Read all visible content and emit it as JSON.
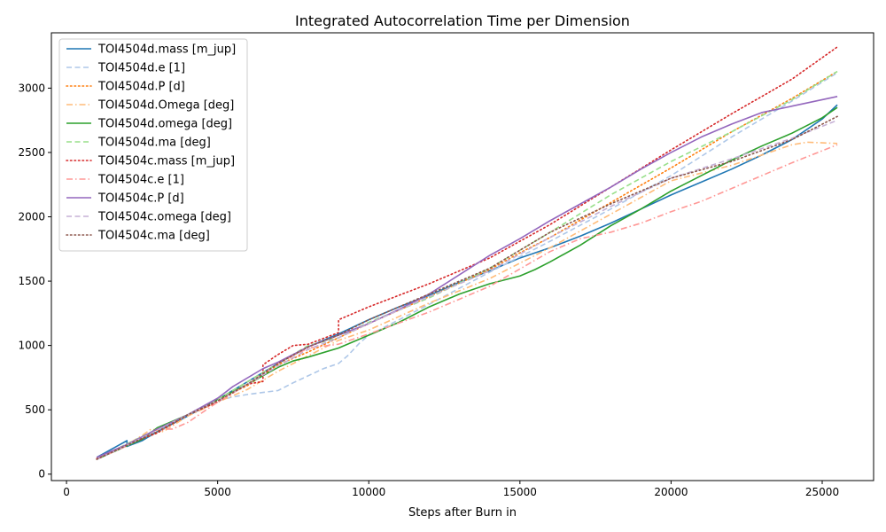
{
  "chart_data": {
    "type": "line",
    "title": "Integrated Autocorrelation Time per Dimension",
    "xlabel": "Steps after Burn in",
    "ylabel": "",
    "xlim": [
      -500,
      26700
    ],
    "ylim": [
      -50,
      3430
    ],
    "xticks": [
      0,
      5000,
      10000,
      15000,
      20000,
      25000
    ],
    "yticks": [
      0,
      500,
      1000,
      1500,
      2000,
      2500,
      3000
    ],
    "legend_position": "top-left",
    "grid": false,
    "series": [
      {
        "name": "TOI4504d.mass [m_jup]",
        "color": "#1f77b4",
        "dash": "solid",
        "alpha": 1,
        "points": [
          [
            1000,
            130
          ],
          [
            2000,
            260
          ],
          [
            2000,
            215
          ],
          [
            2500,
            260
          ],
          [
            3000,
            330
          ],
          [
            4000,
            450
          ],
          [
            5000,
            580
          ],
          [
            6000,
            720
          ],
          [
            7000,
            860
          ],
          [
            8000,
            990
          ],
          [
            9000,
            1090
          ],
          [
            10000,
            1200
          ],
          [
            11000,
            1300
          ],
          [
            12000,
            1390
          ],
          [
            13000,
            1490
          ],
          [
            14000,
            1580
          ],
          [
            15000,
            1680
          ],
          [
            16000,
            1760
          ],
          [
            17000,
            1850
          ],
          [
            18000,
            1950
          ],
          [
            19000,
            2060
          ],
          [
            20000,
            2170
          ],
          [
            21000,
            2270
          ],
          [
            22000,
            2370
          ],
          [
            23000,
            2480
          ],
          [
            24000,
            2600
          ],
          [
            25000,
            2760
          ],
          [
            25500,
            2870
          ]
        ]
      },
      {
        "name": "TOI4504d.e [1]",
        "color": "#aec7e8",
        "dash": "dashed",
        "alpha": 1,
        "points": [
          [
            1000,
            120
          ],
          [
            2000,
            230
          ],
          [
            3000,
            350
          ],
          [
            4000,
            460
          ],
          [
            5000,
            570
          ],
          [
            5500,
            600
          ],
          [
            6000,
            620
          ],
          [
            7000,
            650
          ],
          [
            7500,
            710
          ],
          [
            8500,
            820
          ],
          [
            9000,
            860
          ],
          [
            9300,
            920
          ],
          [
            9700,
            1020
          ],
          [
            10000,
            1080
          ],
          [
            12000,
            1320
          ],
          [
            14000,
            1570
          ],
          [
            16000,
            1810
          ],
          [
            18000,
            2060
          ],
          [
            20000,
            2320
          ],
          [
            22000,
            2620
          ],
          [
            24000,
            2900
          ],
          [
            25500,
            3120
          ]
        ]
      },
      {
        "name": "TOI4504d.P [d]",
        "color": "#ff7f0e",
        "dash": "dotted",
        "alpha": 1,
        "points": [
          [
            1000,
            120
          ],
          [
            2000,
            230
          ],
          [
            3000,
            320
          ],
          [
            4000,
            460
          ],
          [
            5000,
            580
          ],
          [
            6000,
            690
          ],
          [
            7000,
            850
          ],
          [
            8000,
            950
          ],
          [
            9000,
            1060
          ],
          [
            10000,
            1170
          ],
          [
            12000,
            1380
          ],
          [
            14000,
            1590
          ],
          [
            15000,
            1720
          ],
          [
            16000,
            1840
          ],
          [
            18000,
            2110
          ],
          [
            20000,
            2380
          ],
          [
            22000,
            2660
          ],
          [
            24000,
            2920
          ],
          [
            25500,
            3130
          ]
        ]
      },
      {
        "name": "TOI4504d.Omega [deg]",
        "color": "#ffbb78",
        "dash": "dashdot",
        "alpha": 1,
        "points": [
          [
            1000,
            120
          ],
          [
            2000,
            230
          ],
          [
            2500,
            300
          ],
          [
            2800,
            350
          ],
          [
            3200,
            330
          ],
          [
            4000,
            450
          ],
          [
            5000,
            560
          ],
          [
            6000,
            660
          ],
          [
            7000,
            800
          ],
          [
            8000,
            920
          ],
          [
            9000,
            1040
          ],
          [
            10000,
            1120
          ],
          [
            12000,
            1330
          ],
          [
            14000,
            1520
          ],
          [
            16000,
            1760
          ],
          [
            18000,
            2020
          ],
          [
            20000,
            2280
          ],
          [
            22000,
            2400
          ],
          [
            23000,
            2480
          ],
          [
            24000,
            2560
          ],
          [
            24500,
            2580
          ],
          [
            25500,
            2570
          ]
        ]
      },
      {
        "name": "TOI4504d.omega [deg]",
        "color": "#2ca02c",
        "dash": "solid",
        "alpha": 1,
        "points": [
          [
            1000,
            115
          ],
          [
            2000,
            220
          ],
          [
            2500,
            270
          ],
          [
            3000,
            360
          ],
          [
            4000,
            460
          ],
          [
            5000,
            580
          ],
          [
            6000,
            700
          ],
          [
            7000,
            830
          ],
          [
            7500,
            880
          ],
          [
            8000,
            910
          ],
          [
            9000,
            980
          ],
          [
            10000,
            1080
          ],
          [
            11000,
            1180
          ],
          [
            12000,
            1300
          ],
          [
            13000,
            1400
          ],
          [
            14000,
            1480
          ],
          [
            15000,
            1540
          ],
          [
            15500,
            1590
          ],
          [
            16000,
            1650
          ],
          [
            17000,
            1780
          ],
          [
            18000,
            1930
          ],
          [
            19000,
            2060
          ],
          [
            20000,
            2200
          ],
          [
            21000,
            2320
          ],
          [
            22000,
            2440
          ],
          [
            23000,
            2550
          ],
          [
            24000,
            2650
          ],
          [
            25000,
            2770
          ],
          [
            25500,
            2850
          ]
        ]
      },
      {
        "name": "TOI4504d.ma [deg]",
        "color": "#98df8a",
        "dash": "dashed",
        "alpha": 1,
        "points": [
          [
            1000,
            120
          ],
          [
            2000,
            235
          ],
          [
            3000,
            350
          ],
          [
            4000,
            460
          ],
          [
            5000,
            580
          ],
          [
            6000,
            720
          ],
          [
            7000,
            860
          ],
          [
            8000,
            1000
          ],
          [
            9000,
            1060
          ],
          [
            10000,
            1180
          ],
          [
            12000,
            1370
          ],
          [
            14000,
            1600
          ],
          [
            16000,
            1880
          ],
          [
            18000,
            2170
          ],
          [
            20000,
            2430
          ],
          [
            22000,
            2660
          ],
          [
            24000,
            2910
          ],
          [
            25500,
            3130
          ]
        ]
      },
      {
        "name": "TOI4504c.mass [m_jup]",
        "color": "#d62728",
        "dash": "dotted",
        "alpha": 1,
        "points": [
          [
            1000,
            120
          ],
          [
            2000,
            230
          ],
          [
            3000,
            320
          ],
          [
            4000,
            460
          ],
          [
            5000,
            560
          ],
          [
            6000,
            700
          ],
          [
            6500,
            720
          ],
          [
            6500,
            850
          ],
          [
            7000,
            930
          ],
          [
            7500,
            1000
          ],
          [
            8000,
            1010
          ],
          [
            9000,
            1100
          ],
          [
            9000,
            1200
          ],
          [
            10000,
            1300
          ],
          [
            12000,
            1480
          ],
          [
            14000,
            1680
          ],
          [
            16000,
            1940
          ],
          [
            18000,
            2230
          ],
          [
            20000,
            2520
          ],
          [
            22000,
            2800
          ],
          [
            24000,
            3070
          ],
          [
            25500,
            3320
          ]
        ]
      },
      {
        "name": "TOI4504c.e [1]",
        "color": "#ff9896",
        "dash": "dashdot",
        "alpha": 1,
        "points": [
          [
            1000,
            115
          ],
          [
            2000,
            220
          ],
          [
            3000,
            350
          ],
          [
            3500,
            350
          ],
          [
            4000,
            400
          ],
          [
            5000,
            560
          ],
          [
            6000,
            700
          ],
          [
            7000,
            860
          ],
          [
            8000,
            980
          ],
          [
            9000,
            1010
          ],
          [
            10000,
            1090
          ],
          [
            12000,
            1260
          ],
          [
            14000,
            1460
          ],
          [
            16000,
            1730
          ],
          [
            17000,
            1830
          ],
          [
            18000,
            1880
          ],
          [
            19000,
            1950
          ],
          [
            20000,
            2040
          ],
          [
            21000,
            2120
          ],
          [
            22000,
            2220
          ],
          [
            23000,
            2320
          ],
          [
            24000,
            2420
          ],
          [
            25500,
            2560
          ]
        ]
      },
      {
        "name": "TOI4504c.P [d]",
        "color": "#9467bd",
        "dash": "solid",
        "alpha": 1,
        "points": [
          [
            1000,
            130
          ],
          [
            2000,
            230
          ],
          [
            3000,
            350
          ],
          [
            4000,
            460
          ],
          [
            5000,
            590
          ],
          [
            5500,
            680
          ],
          [
            6500,
            820
          ],
          [
            7000,
            870
          ],
          [
            8000,
            990
          ],
          [
            9000,
            1080
          ],
          [
            10000,
            1170
          ],
          [
            11000,
            1280
          ],
          [
            12000,
            1400
          ],
          [
            13000,
            1550
          ],
          [
            14000,
            1700
          ],
          [
            15000,
            1830
          ],
          [
            16000,
            1970
          ],
          [
            17000,
            2100
          ],
          [
            18000,
            2230
          ],
          [
            19000,
            2370
          ],
          [
            20000,
            2500
          ],
          [
            21000,
            2620
          ],
          [
            22000,
            2720
          ],
          [
            23000,
            2810
          ],
          [
            24000,
            2860
          ],
          [
            25000,
            2910
          ],
          [
            25500,
            2935
          ]
        ]
      },
      {
        "name": "TOI4504c.omega [deg]",
        "color": "#c5b0d5",
        "dash": "dashed",
        "alpha": 1,
        "points": [
          [
            1000,
            115
          ],
          [
            2000,
            225
          ],
          [
            3000,
            340
          ],
          [
            4000,
            460
          ],
          [
            5000,
            570
          ],
          [
            6000,
            700
          ],
          [
            7000,
            840
          ],
          [
            8000,
            970
          ],
          [
            9000,
            1060
          ],
          [
            10000,
            1170
          ],
          [
            12000,
            1380
          ],
          [
            14000,
            1580
          ],
          [
            16000,
            1840
          ],
          [
            18000,
            2080
          ],
          [
            20000,
            2300
          ],
          [
            22000,
            2450
          ],
          [
            24000,
            2610
          ],
          [
            25500,
            2750
          ]
        ]
      },
      {
        "name": "TOI4504c.ma [deg]",
        "color": "#8c564b",
        "dash": "dotted",
        "alpha": 1,
        "points": [
          [
            1000,
            115
          ],
          [
            2000,
            225
          ],
          [
            3000,
            330
          ],
          [
            4000,
            460
          ],
          [
            5000,
            570
          ],
          [
            6000,
            700
          ],
          [
            7000,
            860
          ],
          [
            8000,
            990
          ],
          [
            9000,
            1080
          ],
          [
            10000,
            1200
          ],
          [
            12000,
            1400
          ],
          [
            14000,
            1600
          ],
          [
            16000,
            1880
          ],
          [
            18000,
            2100
          ],
          [
            20000,
            2300
          ],
          [
            22000,
            2430
          ],
          [
            24000,
            2600
          ],
          [
            25500,
            2780
          ]
        ]
      }
    ]
  }
}
